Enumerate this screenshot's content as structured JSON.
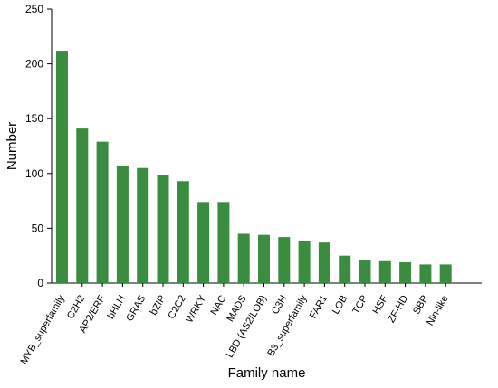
{
  "chart_data": {
    "type": "bar",
    "xlabel": "Family name",
    "ylabel": "Number",
    "ylim": [
      0,
      250
    ],
    "yticks": [
      0,
      50,
      100,
      150,
      200,
      250
    ],
    "categories": [
      "MYB_superfamily",
      "C2H2",
      "AP2/ERF",
      "bHLH",
      "GRAS",
      "bZIP",
      "C2C2",
      "WRKY",
      "NAC",
      "MADS",
      "LBD (AS2/LOB)",
      "C3H",
      "B3_superfamily",
      "FAR1",
      "LOB",
      "TCP",
      "HSF",
      "ZF-HD",
      "SBP",
      "Nin-like"
    ],
    "values": [
      212,
      141,
      129,
      107,
      105,
      99,
      93,
      74,
      74,
      45,
      44,
      42,
      38,
      37,
      25,
      21,
      20,
      19,
      17,
      17
    ],
    "bar_color": "#3a8d3f",
    "grid": false,
    "legend": "none"
  }
}
